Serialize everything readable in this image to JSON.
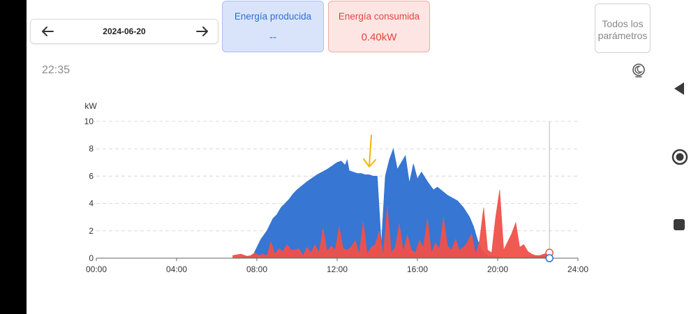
{
  "date_nav": {
    "date": "2024-06-20"
  },
  "cards": {
    "produced": {
      "title": "Energía producida",
      "value": "--"
    },
    "consumed": {
      "title": "Energía consumida",
      "value": "0.40kW"
    }
  },
  "all_params_label_1": "Todos los",
  "all_params_label_2": "parámetros",
  "time": "22:35",
  "colors": {
    "produced": "#2c6fd1",
    "consumed": "#f0504a",
    "annotation": "#f2b600"
  },
  "icons": [
    "arrow-left-icon",
    "arrow-right-icon",
    "moon-icon",
    "nav-back-icon",
    "nav-home-icon",
    "nav-recents-icon"
  ],
  "chart_data": {
    "type": "area",
    "ylabel": "kW",
    "ylim": [
      0,
      10
    ],
    "yticks": [
      "0",
      "2",
      "4",
      "6",
      "8",
      "10"
    ],
    "xlim": [
      0,
      24
    ],
    "xticks": [
      "00:00",
      "04:00",
      "08:00",
      "12:00",
      "16:00",
      "20:00",
      "24:00"
    ],
    "grid": true,
    "cursor_time": 22.58,
    "series": [
      {
        "key": "produced",
        "x": [
          6.8,
          7.8,
          8.2,
          8.5,
          8.8,
          9.0,
          9.2,
          9.4,
          9.6,
          9.8,
          10.0,
          10.5,
          11.0,
          11.5,
          11.8,
          12.0,
          12.2,
          12.4,
          12.5,
          12.6,
          12.8,
          13.0,
          13.2,
          13.4,
          13.6,
          13.8,
          14.0,
          14.2,
          14.4,
          14.6,
          14.8,
          15.0,
          15.2,
          15.4,
          15.6,
          15.8,
          16.0,
          16.2,
          16.5,
          16.8,
          17.0,
          17.5,
          18.0,
          18.3,
          18.6,
          18.8,
          19.0,
          19.2,
          19.5,
          20.0,
          20.5,
          21.0,
          21.5,
          22.0,
          22.5
        ],
        "values": [
          0.0,
          0.2,
          1.4,
          2.0,
          2.9,
          3.2,
          3.7,
          4.0,
          4.3,
          4.7,
          5.0,
          5.6,
          6.1,
          6.5,
          6.8,
          7.0,
          7.1,
          6.8,
          7.2,
          6.4,
          6.3,
          6.2,
          6.2,
          6.1,
          6.1,
          6.0,
          6.0,
          1.0,
          6.0,
          7.2,
          8.0,
          6.5,
          7.0,
          7.5,
          5.5,
          6.9,
          5.8,
          6.3,
          5.6,
          5.0,
          5.2,
          4.6,
          4.2,
          3.7,
          3.0,
          2.3,
          1.3,
          0.6,
          0.2,
          0.1,
          0.05,
          0.05,
          0.1,
          0.15,
          0.2
        ]
      },
      {
        "key": "consumed",
        "x": [
          6.8,
          7.2,
          7.6,
          7.9,
          8.1,
          8.3,
          8.5,
          8.7,
          8.9,
          9.1,
          9.3,
          9.5,
          9.7,
          9.9,
          10.1,
          10.3,
          10.5,
          10.7,
          10.9,
          11.1,
          11.3,
          11.5,
          11.7,
          11.9,
          12.1,
          12.3,
          12.5,
          12.7,
          12.9,
          13.1,
          13.3,
          13.5,
          13.7,
          13.9,
          14.1,
          14.3,
          14.5,
          14.7,
          14.9,
          15.1,
          15.3,
          15.5,
          15.7,
          15.9,
          16.1,
          16.3,
          16.5,
          16.7,
          16.9,
          17.1,
          17.3,
          17.5,
          17.7,
          17.9,
          18.1,
          18.3,
          18.5,
          18.7,
          18.9,
          19.1,
          19.3,
          19.5,
          19.7,
          19.9,
          20.1,
          20.3,
          20.5,
          20.7,
          20.9,
          21.1,
          21.3,
          21.5,
          21.7,
          21.9,
          22.1,
          22.3,
          22.5
        ],
        "values": [
          0.2,
          0.3,
          0.1,
          0.4,
          0.2,
          0.3,
          0.2,
          1.2,
          0.3,
          0.7,
          0.5,
          1.0,
          0.6,
          0.6,
          0.7,
          0.2,
          0.8,
          0.4,
          1.0,
          0.4,
          2.2,
          0.5,
          0.9,
          0.6,
          2.3,
          0.7,
          0.6,
          0.8,
          1.3,
          0.3,
          2.7,
          0.3,
          0.8,
          1.0,
          2.0,
          0.2,
          3.8,
          0.4,
          0.8,
          2.5,
          0.5,
          1.7,
          0.6,
          0.4,
          1.3,
          0.8,
          2.9,
          0.4,
          1.1,
          0.7,
          3.0,
          0.9,
          0.6,
          1.4,
          0.6,
          0.8,
          1.2,
          1.8,
          0.3,
          1.3,
          3.7,
          0.6,
          0.4,
          3.0,
          5.0,
          0.6,
          1.2,
          1.8,
          2.6,
          0.8,
          1.0,
          0.5,
          0.3,
          0.2,
          0.2,
          0.3,
          0.4
        ]
      }
    ]
  }
}
